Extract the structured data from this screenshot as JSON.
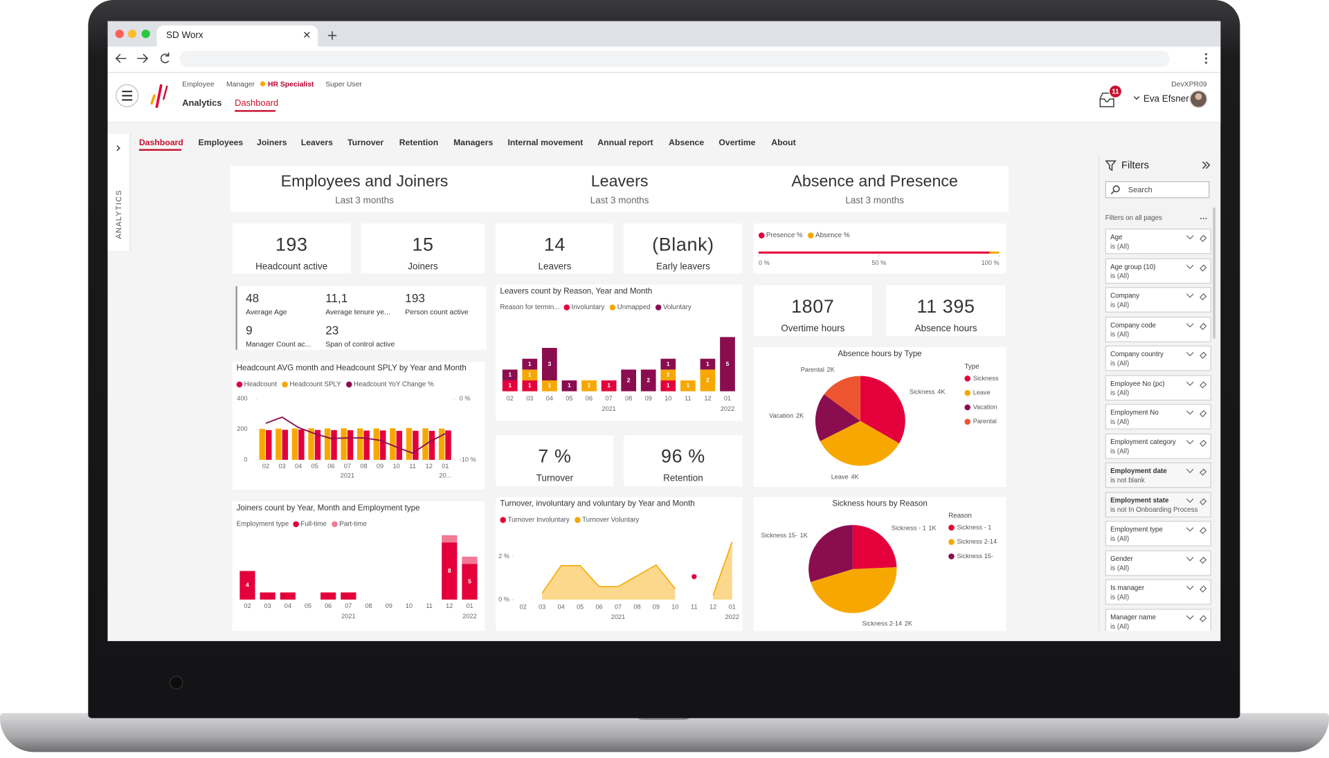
{
  "browser": {
    "tab_title": "SD Worx"
  },
  "header": {
    "roles": [
      "Employee",
      "Manager",
      "HR Specialist",
      "Super User"
    ],
    "app": "Analytics",
    "app_tab": "Dashboard",
    "environment": "DevXPR09",
    "notifications": "11",
    "user": "Eva Efsner"
  },
  "side_panel": "ANALYTICS",
  "nav": [
    "Dashboard",
    "Employees",
    "Joiners",
    "Leavers",
    "Turnover",
    "Retention",
    "Managers",
    "Internal movement",
    "Annual report",
    "Absence",
    "Overtime",
    "About"
  ],
  "sections": [
    {
      "title": "Employees and Joiners",
      "subtitle": "Last 3 months"
    },
    {
      "title": "Leavers",
      "subtitle": "Last 3 months"
    },
    {
      "title": "Absence and Presence",
      "subtitle": "Last 3 months"
    }
  ],
  "kpis": [
    {
      "value": "193",
      "label": "Headcount active"
    },
    {
      "value": "15",
      "label": "Joiners"
    },
    {
      "value": "14",
      "label": "Leavers"
    },
    {
      "value": "(Blank)",
      "label": "Early leavers"
    },
    {
      "value": "1807",
      "label": "Overtime hours"
    },
    {
      "value": "11 395",
      "label": "Absence hours"
    },
    {
      "value": "7 %",
      "label": "Turnover"
    },
    {
      "value": "96 %",
      "label": "Retention"
    }
  ],
  "stats": [
    {
      "value": "48",
      "label": "Average Age"
    },
    {
      "value": "11,1",
      "label": "Average tenure ye..."
    },
    {
      "value": "193",
      "label": "Person count active"
    },
    {
      "value": "9",
      "label": "Manager Count ac..."
    },
    {
      "value": "23",
      "label": "Span of control active"
    }
  ],
  "filters": {
    "title": "Filters",
    "search": "Search",
    "section": "Filters on all pages",
    "items": [
      {
        "name": "Age",
        "state": "is (All)"
      },
      {
        "name": "Age group (10)",
        "state": "is (All)"
      },
      {
        "name": "Company",
        "state": "is (All)"
      },
      {
        "name": "Company code",
        "state": "is (All)"
      },
      {
        "name": "Company country",
        "state": "is (All)"
      },
      {
        "name": "Employee No (pc)",
        "state": "is (All)"
      },
      {
        "name": "Employment No",
        "state": "is (All)"
      },
      {
        "name": "Employment category",
        "state": "is (All)"
      },
      {
        "name": "Employment date",
        "state": "is not blank",
        "applied": true
      },
      {
        "name": "Employment state",
        "state": "is not In Onboarding Process",
        "applied": true
      },
      {
        "name": "Employment type",
        "state": "is (All)"
      },
      {
        "name": "Gender",
        "state": "is (All)"
      },
      {
        "name": "Is manager",
        "state": "is (All)"
      },
      {
        "name": "Manager name",
        "state": "is (All)"
      }
    ]
  },
  "charts": {
    "presence": {
      "type": "stacked_hbar",
      "series": [
        {
          "name": "Presence %",
          "color": "#e4003b",
          "values": [
            96
          ]
        },
        {
          "name": "Absence %",
          "color": "#f7a800",
          "values": [
            4
          ]
        }
      ],
      "xlim": [
        0,
        100
      ],
      "xticks": [
        {
          "value": 0,
          "label": "0 %"
        },
        {
          "value": 50,
          "label": "50 %"
        },
        {
          "value": 100,
          "label": "100 %"
        }
      ]
    },
    "headcount": {
      "type": "grouped_bar_line",
      "title": "Headcount AVG month and Headcount SPLY by Year and Month",
      "categories": [
        "02",
        "03",
        "04",
        "05",
        "06",
        "07",
        "08",
        "09",
        "10",
        "11",
        "12",
        "01"
      ],
      "years": [
        "2021",
        "20..."
      ],
      "series": [
        {
          "name": "Headcount",
          "color": "#e4003b",
          "values": [
            195,
            197,
            199,
            196,
            195,
            194,
            192,
            193,
            190,
            191,
            190,
            193
          ]
        },
        {
          "name": "Headcount SPLY",
          "color": "#f7a800",
          "values": [
            203,
            205,
            206,
            207,
            206,
            207,
            206,
            206,
            207,
            209,
            207,
            205
          ]
        },
        {
          "name": "Headcount YoY Change %",
          "color": "#8a0d4f",
          "axis": "y2",
          "values": [
            -4,
            -3,
            -4.7,
            -5.7,
            -6.5,
            -6.4,
            -6.4,
            -6.8,
            -7.9,
            -8.9,
            -7.1,
            -5.7
          ]
        }
      ],
      "ylim": [
        0,
        400
      ],
      "yticks": [
        0,
        200,
        400
      ],
      "y2lim": [
        -10,
        0
      ],
      "y2ticks": [
        {
          "value": 0,
          "label": "0 %"
        },
        {
          "value": -10,
          "label": "-10 %"
        }
      ]
    },
    "joiners": {
      "type": "stacked_bar",
      "title": "Joiners count by Year, Month and Employment type",
      "legend_title": "Employment type",
      "categories": [
        "02",
        "03",
        "04",
        "05",
        "06",
        "07",
        "08",
        "09",
        "10",
        "11",
        "12",
        "01"
      ],
      "years": [
        "2021",
        "2022"
      ],
      "series": [
        {
          "name": "Full-time",
          "color": "#e4003b",
          "values": [
            4,
            1,
            1,
            0,
            1,
            1,
            0,
            0,
            0,
            0,
            8,
            5
          ]
        },
        {
          "name": "Part-time",
          "color": "#f27a96",
          "values": [
            0,
            0,
            0,
            0,
            0,
            0,
            0,
            0,
            0,
            0,
            1,
            1
          ]
        }
      ]
    },
    "leavers": {
      "type": "stacked_bar",
      "title": "Leavers count by Reason, Year and Month",
      "legend_title": "Reason for termin...",
      "categories": [
        "02",
        "03",
        "04",
        "05",
        "06",
        "07",
        "08",
        "09",
        "10",
        "11",
        "12",
        "01"
      ],
      "years": [
        "2021",
        "2022"
      ],
      "series": [
        {
          "name": "Involuntary",
          "color": "#e4003b",
          "values": [
            1,
            1,
            0,
            0,
            0,
            1,
            0,
            0,
            1,
            0,
            0,
            0
          ]
        },
        {
          "name": "Unmapped",
          "color": "#f7a800",
          "values": [
            0,
            1,
            1,
            0,
            1,
            0,
            0,
            0,
            1,
            1,
            2,
            0
          ]
        },
        {
          "name": "Voluntary",
          "color": "#8a0d4f",
          "values": [
            1,
            1,
            3,
            1,
            0,
            0,
            2,
            2,
            1,
            0,
            1,
            5
          ]
        }
      ]
    },
    "turnover": {
      "type": "area",
      "title": "Turnover, involuntary and voluntary by Year and Month",
      "categories": [
        "02",
        "03",
        "04",
        "05",
        "06",
        "07",
        "08",
        "09",
        "10",
        "11",
        "12",
        "01"
      ],
      "years": [
        "2021",
        "2022"
      ],
      "series": [
        {
          "name": "Turnover Involuntary",
          "color": "#e4003b",
          "style": "points",
          "values": [
            null,
            null,
            null,
            null,
            null,
            null,
            null,
            null,
            null,
            1.06,
            null,
            null
          ]
        },
        {
          "name": "Turnover Voluntary",
          "color": "#f7a800",
          "style": "area",
          "values": [
            null,
            0.3,
            1.57,
            1.57,
            0.6,
            0.6,
            1.1,
            1.6,
            0.5,
            null,
            0.2,
            2.67
          ]
        }
      ],
      "ylim": [
        0,
        2.7
      ],
      "yticks": [
        {
          "value": 0,
          "label": "0 %"
        },
        {
          "value": 2,
          "label": "2 %"
        }
      ]
    },
    "absence": {
      "type": "pie",
      "title": "Absence hours by Type",
      "legend_title": "Type",
      "categories": [
        "Sickness",
        "Leave",
        "Vacation",
        "Parental"
      ],
      "values": [
        3800,
        3900,
        2000,
        1700
      ],
      "value_labels": [
        "4K",
        "4K",
        "2K",
        "2K"
      ],
      "colors": [
        "#e4003b",
        "#f7a800",
        "#8a0d4f",
        "#ed5530"
      ]
    },
    "sickness": {
      "type": "pie",
      "title": "Sickness hours by Reason",
      "legend_title": "Reason",
      "categories": [
        "Sickness - 1",
        "Sickness 2-14",
        "Sickness 15-"
      ],
      "values": [
        900,
        1700,
        1100
      ],
      "value_labels": [
        "1K",
        "2K",
        "1K"
      ],
      "colors": [
        "#e4003b",
        "#f7a800",
        "#8a0d4f"
      ]
    }
  }
}
